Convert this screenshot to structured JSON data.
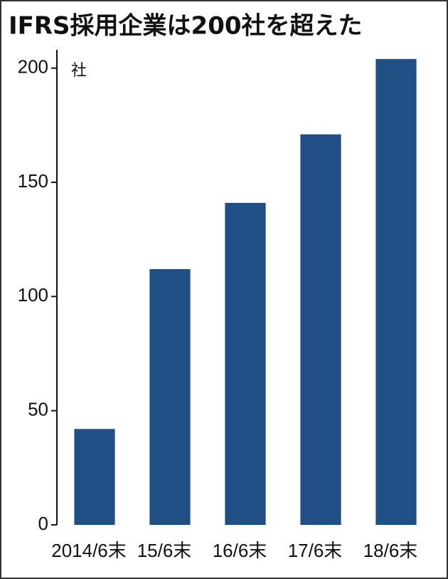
{
  "chart_data": {
    "type": "bar",
    "title": "IFRS採用企業は200社を超えた",
    "unit": "社",
    "categories": [
      "2014/6末",
      "15/6末",
      "16/6末",
      "17/6末",
      "18/6末"
    ],
    "values": [
      42,
      112,
      141,
      171,
      204
    ],
    "color": "#1f4f85",
    "ylim": [
      0,
      208
    ],
    "yticks": [
      0,
      50,
      100,
      150,
      200
    ],
    "grid": false
  }
}
